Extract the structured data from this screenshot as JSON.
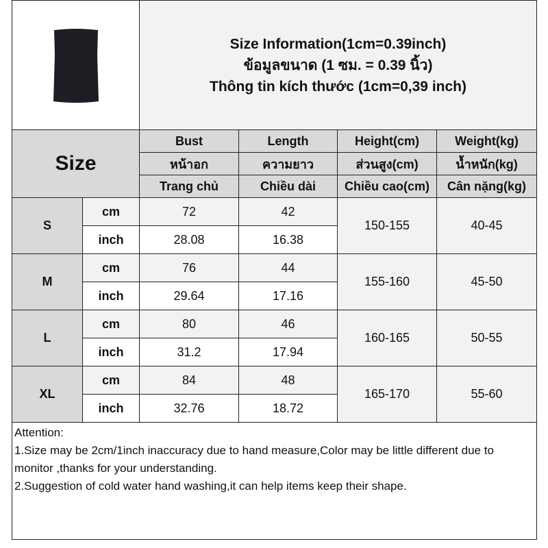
{
  "title_lines": [
    "Size Information(1cm=0.39inch)",
    "ข้อมูลขนาด (1 ซม. = 0.39 นิ้ว)",
    "Thông tin kích thước (1cm=0,39 inch)"
  ],
  "size_label": "Size",
  "columns": [
    [
      "Bust",
      "หน้าอก",
      "Trang chủ"
    ],
    [
      "Length",
      "ความยาว",
      "Chiều dài"
    ],
    [
      "Height(cm)",
      "ส่วนสูง(cm)",
      "Chiều cao(cm)"
    ],
    [
      "Weight(kg)",
      "น้ำหนัก(kg)",
      "Cân nặng(kg)"
    ]
  ],
  "units": {
    "cm": "cm",
    "inch": "inch"
  },
  "rows": [
    {
      "size": "S",
      "bust_cm": "72",
      "length_cm": "42",
      "bust_in": "28.08",
      "length_in": "16.38",
      "height": "150-155",
      "weight": "40-45"
    },
    {
      "size": "M",
      "bust_cm": "76",
      "length_cm": "44",
      "bust_in": "29.64",
      "length_in": "17.16",
      "height": "155-160",
      "weight": "45-50"
    },
    {
      "size": "L",
      "bust_cm": "80",
      "length_cm": "46",
      "bust_in": "31.2",
      "length_in": "17.94",
      "height": "160-165",
      "weight": "50-55"
    },
    {
      "size": "XL",
      "bust_cm": "84",
      "length_cm": "48",
      "bust_in": "32.76",
      "length_in": "18.72",
      "height": "165-170",
      "weight": "55-60"
    }
  ],
  "attention": [
    "Attention:",
    "1.Size may be 2cm/1inch inaccuracy due to hand measure,Color may be little different due to monitor ,thanks for your understanding.",
    "2.Suggestion of cold water hand washing,it can help items keep their shape."
  ],
  "colors": {
    "header_gray": "#d9d9d9",
    "light_gray": "#f2f2f2",
    "product": "#1c1e24"
  }
}
